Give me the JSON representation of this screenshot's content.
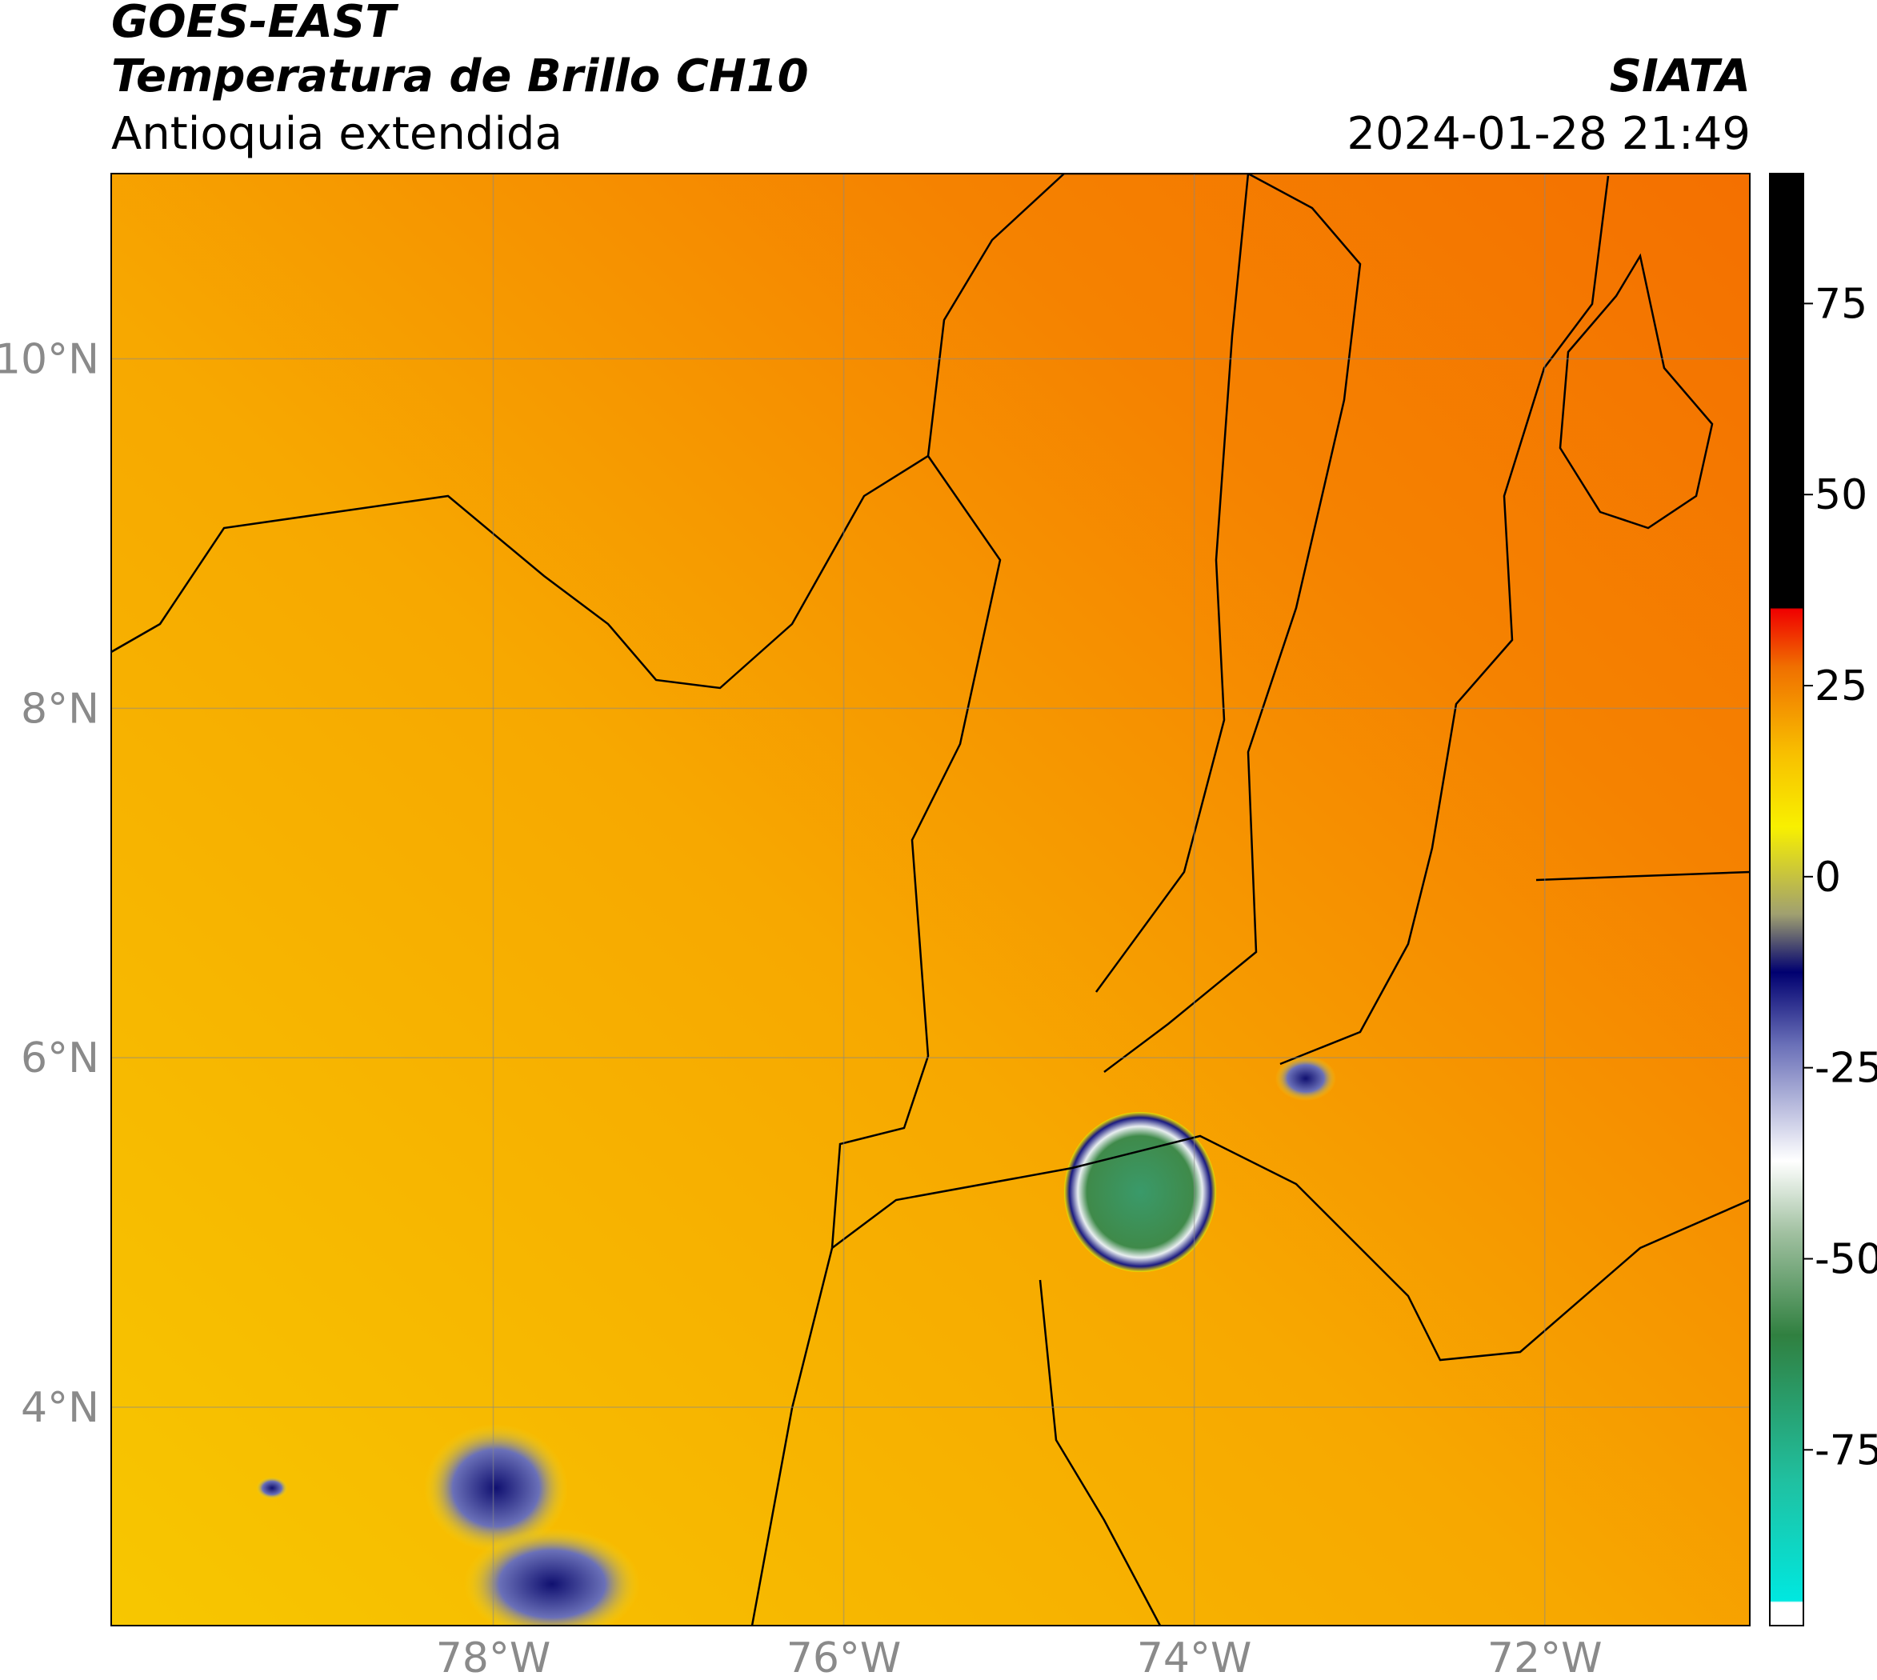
{
  "header": {
    "satellite": "GOES-EAST",
    "product": "Temperatura de Brillo CH10",
    "region": "Antioquia extendida",
    "source": "SIATA",
    "datetime": "2024-01-28 21:49"
  },
  "map": {
    "xlim": [
      -80.18,
      -70.83
    ],
    "ylim": [
      2.75,
      11.06
    ],
    "xticks": [
      {
        "value": -78,
        "label": "78°W"
      },
      {
        "value": -76,
        "label": "76°W"
      },
      {
        "value": -74,
        "label": "74°W"
      },
      {
        "value": -72,
        "label": "72°W"
      }
    ],
    "yticks": [
      {
        "value": 4,
        "label": "4°N"
      },
      {
        "value": 6,
        "label": "6°N"
      },
      {
        "value": 8,
        "label": "8°N"
      },
      {
        "value": 10,
        "label": "10°N"
      }
    ],
    "grid": true
  },
  "colorbar": {
    "lim": [
      -98,
      92
    ],
    "ticks": [
      -75,
      -50,
      -25,
      0,
      25,
      50,
      75
    ]
  }
}
